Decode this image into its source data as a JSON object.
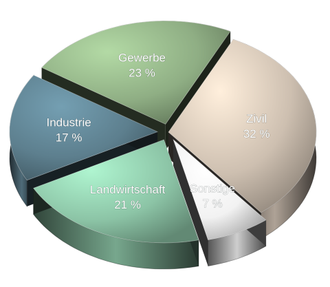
{
  "chart_data": {
    "type": "pie",
    "title": "",
    "legend": "none",
    "slices": [
      {
        "label": "Industrie",
        "value": 17,
        "value_label": "17 %",
        "color": "#5d7f8e",
        "exploded": true
      },
      {
        "label": "Gewerbe",
        "value": 23,
        "value_label": "23 %",
        "color": "#8fae84",
        "exploded": true
      },
      {
        "label": "Zivil",
        "value": 32,
        "value_label": "32 %",
        "color": "#cdbfb0",
        "exploded": false
      },
      {
        "label": "Sonstige",
        "value": 7,
        "value_label": "7 %",
        "color": "#f2f2f2",
        "exploded": true
      },
      {
        "label": "Landwirtschaft",
        "value": 21,
        "value_label": "21 %",
        "color": "#8cc4a6",
        "exploded": true
      }
    ]
  }
}
